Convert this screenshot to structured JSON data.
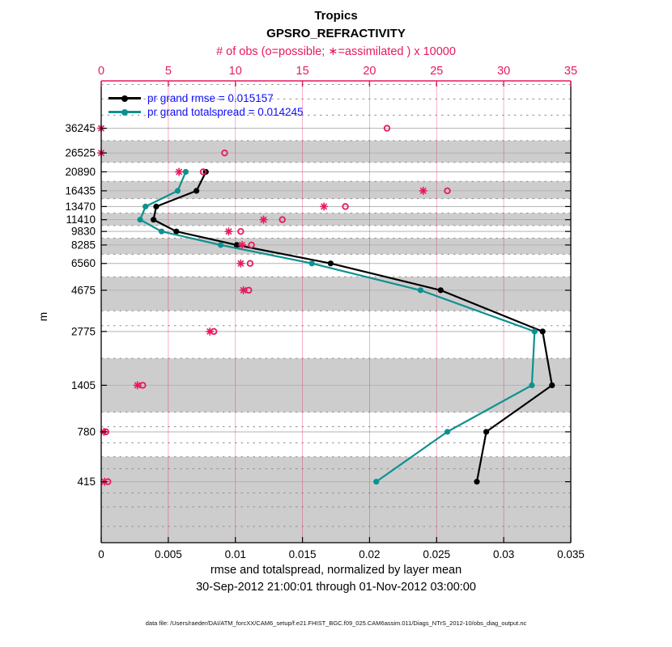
{
  "header": {
    "title": "Tropics",
    "subtitle": "GPSRO_REFRACTIVITY"
  },
  "chart_data": {
    "type": "line",
    "title": "Tropics",
    "subtitle": "GPSRO_REFRACTIVITY",
    "top_axis": {
      "label": "# of obs (o=possible; ∗=assimilated ) x 10000",
      "ticks": [
        0,
        5,
        10,
        15,
        20,
        25,
        30,
        35
      ],
      "range": [
        0,
        35
      ],
      "color": "#e8185e"
    },
    "bottom_axis": {
      "label": "rmse and totalspread, normalized by layer mean",
      "sublabel": "30-Sep-2012 21:00:01 through 01-Nov-2012 03:00:00",
      "tick_labels": [
        "0",
        "0.005",
        "0.01",
        "0.015",
        "0.02",
        "0.025",
        "0.03",
        "0.035"
      ],
      "tick_values": [
        0,
        0.005,
        0.01,
        0.015,
        0.02,
        0.025,
        0.03,
        0.035
      ],
      "range": [
        0,
        0.035
      ]
    },
    "y_axis": {
      "label": "m",
      "scale": "log",
      "range": [
        192,
        66000
      ],
      "tick_labels": [
        "415",
        "780",
        "1405",
        "2775",
        "4675",
        "6560",
        "8285",
        "9830",
        "11410",
        "13470",
        "16435",
        "20890",
        "26525",
        "36245"
      ]
    },
    "levels": [
      415,
      780,
      1405,
      2775,
      4675,
      6560,
      8285,
      9830,
      11410,
      13470,
      16435,
      20890,
      26525,
      36245
    ],
    "series": [
      {
        "name": "pr grand rmse",
        "legend": "pr grand rmse = 0.015157",
        "color": "#000000",
        "values": [
          0.028,
          0.0287,
          0.0336,
          0.0329,
          0.0253,
          0.0171,
          0.0101,
          0.0056,
          0.0039,
          0.0041,
          0.0071,
          0.0078,
          null,
          null
        ]
      },
      {
        "name": "pr grand totalspread",
        "legend": "pr grand totalspread = 0.014245",
        "color": "#0d9190",
        "values": [
          0.0205,
          0.0258,
          0.0321,
          0.0323,
          0.0238,
          0.0157,
          0.0089,
          0.0045,
          0.0029,
          0.0033,
          0.0057,
          0.0063,
          null,
          null
        ]
      }
    ],
    "obs_counts": {
      "units": "x 10000",
      "marker_possible": "o",
      "marker_assimilated": "*",
      "possible": [
        0.5,
        0.35,
        3.1,
        8.4,
        11.0,
        11.1,
        11.2,
        10.4,
        13.5,
        18.2,
        25.8,
        7.6,
        9.2,
        21.3
      ],
      "assimilated": [
        0.25,
        0.2,
        2.7,
        8.1,
        10.6,
        10.4,
        10.5,
        9.5,
        12.1,
        16.6,
        24.0,
        5.8,
        0.0,
        0.0
      ]
    },
    "shaded_bands": [
      [
        31008,
        23539
      ],
      [
        18529,
        14878
      ],
      [
        12397,
        10590
      ],
      [
        9024,
        7372
      ],
      [
        5538,
        3602
      ],
      [
        1975,
        1000
      ],
      [
        569,
        192
      ]
    ],
    "dashed_edges": [
      63000,
      52500,
      42800,
      31008,
      23539,
      18529,
      14878,
      12397,
      10590,
      9024,
      7372,
      5538,
      3602,
      2985,
      1975,
      1000,
      832,
      678,
      569,
      489,
      360,
      302,
      236
    ],
    "grid": {
      "vertical_gridline_ticks": [
        5,
        10,
        15,
        20,
        25,
        30
      ]
    },
    "legend_position": "top-left"
  },
  "colors": {
    "obs_pink": "#e8185e",
    "spread_teal": "#0d9190",
    "rmse_black": "#000000",
    "legend_text_blue": "#1010ff",
    "band_gray": "#cdcdcd",
    "level_line_gray": "#b3b3b3",
    "dashed_line_gray": "#8f8f8f"
  },
  "footer": {
    "text": "data file: /Users/raeder/DAI/ATM_forcXX/CAM6_setup/f.e21.FHIST_BGC.f09_025.CAM6assim.011/Diags_NTrS_2012-10/obs_diag_output.nc"
  }
}
